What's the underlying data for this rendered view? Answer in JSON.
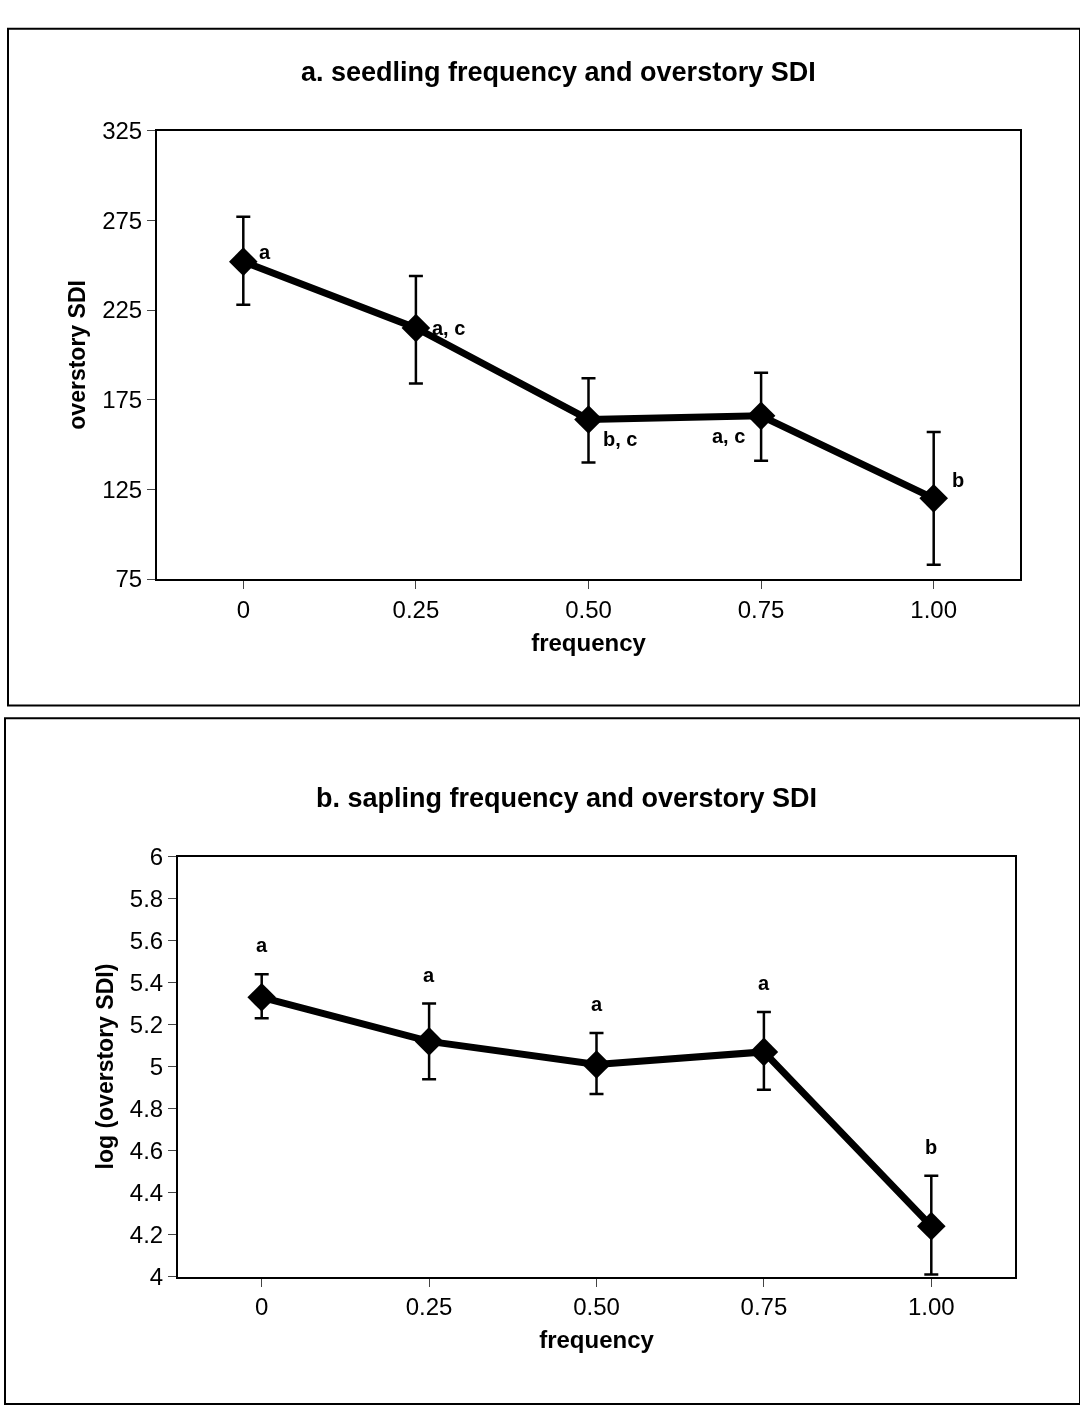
{
  "chart_data": [
    {
      "type": "line",
      "title": "a. seedling frequency and overstory SDI",
      "xlabel": "frequency",
      "ylabel": "overstory SDI",
      "categories": [
        "0",
        "0.25",
        "0.50",
        "0.75",
        "1.00"
      ],
      "values": [
        252,
        215,
        164,
        166,
        120
      ],
      "errors": [
        [
          228,
          277
        ],
        [
          184,
          244
        ],
        [
          140,
          187
        ],
        [
          141,
          190
        ],
        [
          83,
          157
        ]
      ],
      "color": "#000000",
      "marker": "diamond",
      "line_style": "solid",
      "ylim": [
        75,
        325
      ],
      "yticks": [
        75,
        125,
        175,
        225,
        275,
        325
      ],
      "annotations": [
        {
          "text": "a",
          "x": "0",
          "y": 252
        },
        {
          "text": "a, c",
          "x": "0.25",
          "y": 215
        },
        {
          "text": "b, c",
          "x": "0.50",
          "y": 164
        },
        {
          "text": "a, c",
          "x": "0.75",
          "y": 166
        },
        {
          "text": "b",
          "x": "1.00",
          "y": 120
        }
      ]
    },
    {
      "type": "line",
      "title": "b. sapling frequency and overstory SDI",
      "xlabel": "frequency",
      "ylabel": "log (overstory SDI)",
      "categories": [
        "0",
        "0.25",
        "0.50",
        "0.75",
        "1.00"
      ],
      "values": [
        5.33,
        5.12,
        5.01,
        5.07,
        4.24
      ],
      "errors": [
        [
          5.23,
          5.44
        ],
        [
          4.94,
          5.3
        ],
        [
          4.87,
          5.16
        ],
        [
          4.89,
          5.26
        ],
        [
          4.01,
          4.48
        ]
      ],
      "color": "#000000",
      "marker": "diamond",
      "line_style": "solid",
      "ylim": [
        4,
        6
      ],
      "yticks": [
        4,
        {
          "value": 4.2,
          "label": "4.2"
        },
        {
          "value": 4.4,
          "label": "4.4"
        },
        {
          "value": 4.6,
          "label": "4.6"
        },
        {
          "value": 4.8,
          "label": "4.8"
        },
        5,
        {
          "value": 5.2,
          "label": "5.2"
        },
        {
          "value": 5.4,
          "label": "5.4"
        },
        {
          "value": 5.6,
          "label": "5.6"
        },
        {
          "value": 5.8,
          "label": "5.8"
        },
        6
      ],
      "annotations": [
        "a",
        "a",
        "a",
        "a",
        "b"
      ]
    }
  ]
}
